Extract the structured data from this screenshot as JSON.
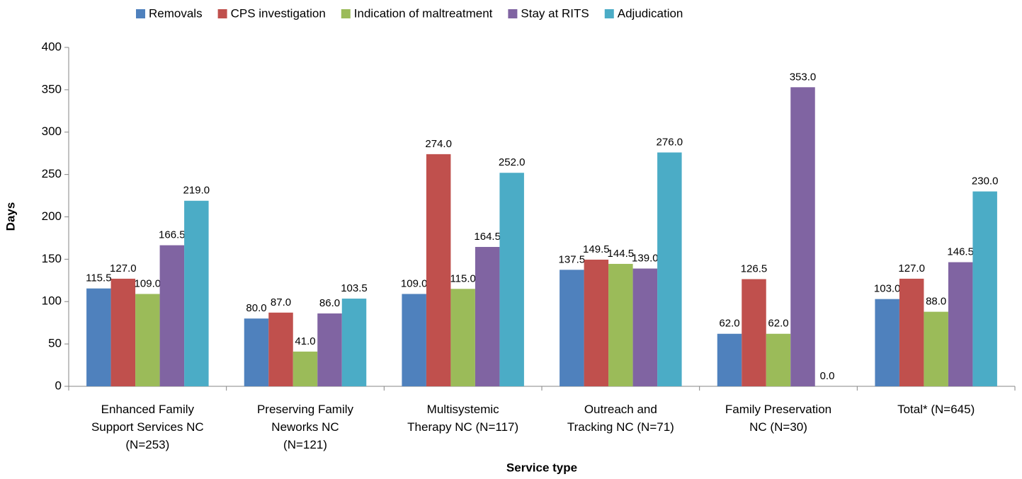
{
  "chart_data": {
    "type": "bar",
    "categories": [
      "Enhanced Family\nSupport Services NC\n(N=253)",
      "Preserving Family\nNeworks NC\n(N=121)",
      "Multisystemic\nTherapy NC (N=117)",
      "Outreach and\nTracking NC (N=71)",
      "Family Preservation\nNC (N=30)",
      "Total* (N=645)"
    ],
    "series": [
      {
        "name": "Removals",
        "color": "#4f81bd",
        "values": [
          115.5,
          80,
          109,
          137.5,
          62,
          103
        ],
        "value_labels": [
          "115.5",
          "80.0",
          "109.0",
          "137.5",
          "62.0",
          "103.0"
        ]
      },
      {
        "name": "CPS investigation",
        "color": "#c0504d",
        "values": [
          127,
          87,
          274,
          149.5,
          126.5,
          127
        ],
        "value_labels": [
          "127.0",
          "87.0",
          "274.0",
          "149.5",
          "126.5",
          "127.0"
        ]
      },
      {
        "name": "Indication of maltreatment",
        "color": "#9bbb59",
        "values": [
          109,
          41,
          115,
          144.5,
          62,
          88
        ],
        "value_labels": [
          "109.0",
          "41.0",
          "115.0",
          "144.5",
          "62.0",
          "88.0"
        ]
      },
      {
        "name": "Stay at RITS",
        "color": "#8064a2",
        "values": [
          166.5,
          86,
          164.5,
          139,
          353,
          146.5
        ],
        "value_labels": [
          "166.5",
          "86.0",
          "164.5",
          "139.0",
          "353.0",
          "146.5"
        ]
      },
      {
        "name": "Adjudication",
        "color": "#4bacc6",
        "values": [
          219,
          103.5,
          252,
          276,
          0,
          230
        ],
        "value_labels": [
          "219.0",
          "103.5",
          "252.0",
          "276.0",
          "0.0",
          "230.0"
        ]
      }
    ],
    "xlabel": "Service type",
    "ylabel": "Days",
    "ylim": [
      0,
      400
    ],
    "yticks": [
      0,
      50,
      100,
      150,
      200,
      250,
      300,
      350,
      400
    ],
    "grid": false,
    "legend": "top"
  }
}
